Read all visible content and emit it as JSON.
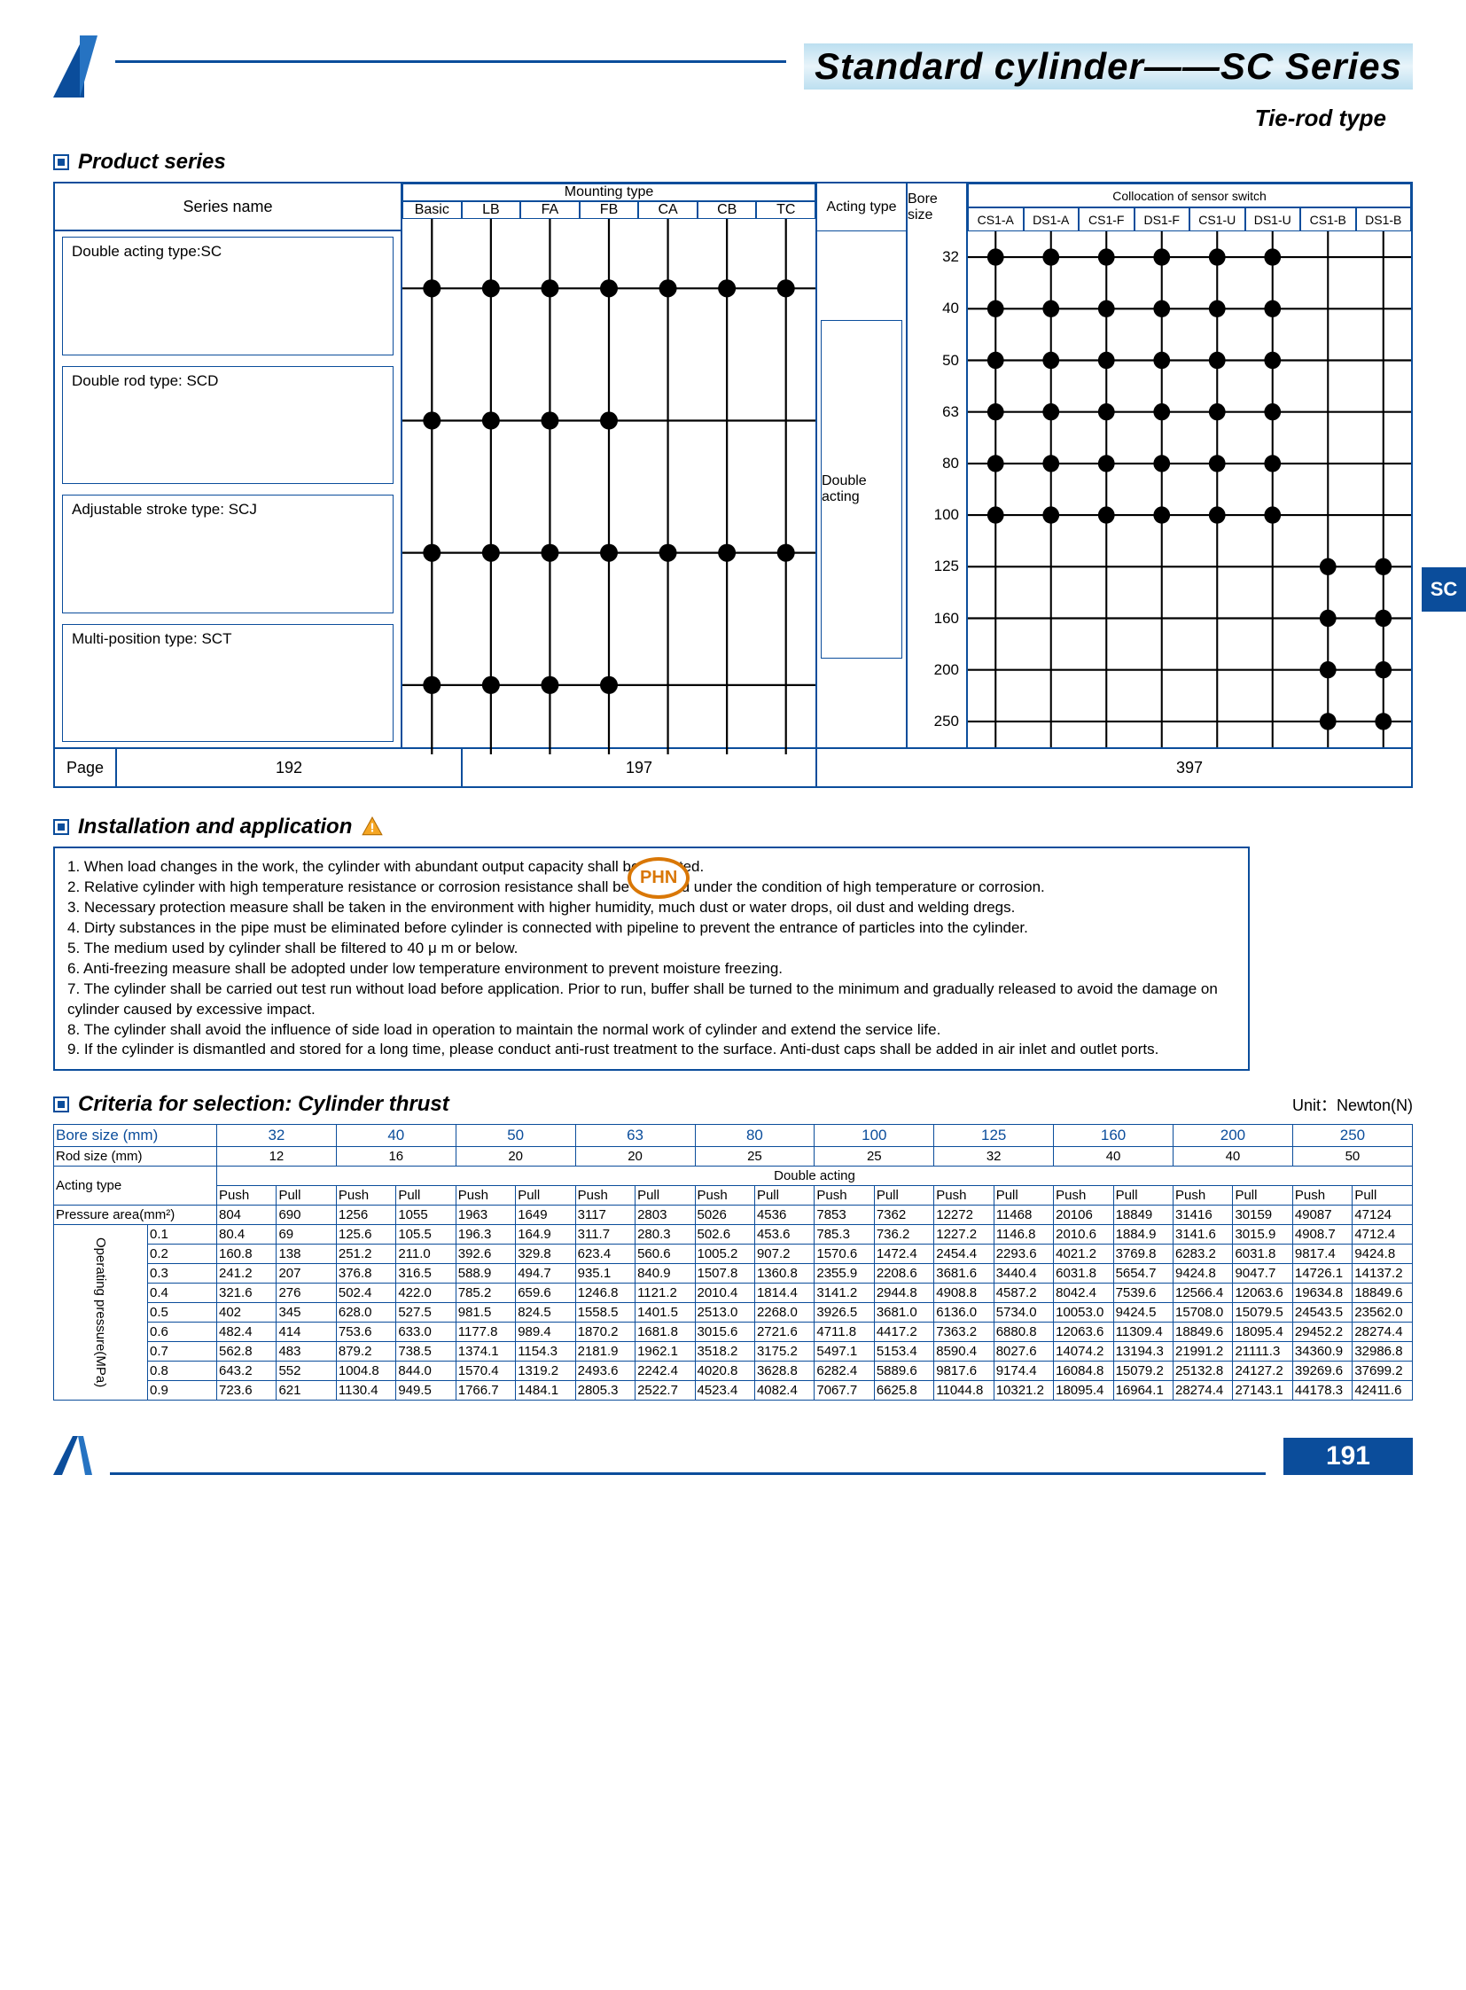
{
  "header": {
    "title": "Standard cylinder——SC Series",
    "subtitle": "Tie-rod type"
  },
  "sc_tab": "SC",
  "sections": {
    "product_series": "Product series",
    "installation": "Installation and application",
    "criteria": "Criteria for selection: Cylinder thrust"
  },
  "product_series": {
    "series_name_header": "Series name",
    "series": [
      "Double acting type:SC",
      "Double rod type: SCD",
      "Adjustable stroke type: SCJ",
      "Multi-position type: SCT"
    ],
    "mounting_header": "Mounting type",
    "mounting_types": [
      "Basic",
      "LB",
      "FA",
      "FB",
      "CA",
      "CB",
      "TC"
    ],
    "acting_header": "Acting type",
    "acting_value": "Double acting",
    "bore_header": "Bore size",
    "bore_sizes": [
      "32",
      "40",
      "50",
      "63",
      "80",
      "100",
      "125",
      "160",
      "200",
      "250"
    ],
    "sensor_header": "Collocation of sensor switch",
    "sensor_types": [
      "CS1-A",
      "DS1-A",
      "CS1-F",
      "DS1-F",
      "CS1-U",
      "DS1-U",
      "CS1-B",
      "DS1-B"
    ],
    "page_label": "Page",
    "pages": [
      "192",
      "197",
      "397"
    ],
    "mounting_chart": {
      "type": "dot-grid",
      "rows": 4,
      "cols": 7,
      "dots": [
        [
          0,
          0
        ],
        [
          0,
          1
        ],
        [
          0,
          2
        ],
        [
          0,
          3
        ],
        [
          0,
          4
        ],
        [
          0,
          5
        ],
        [
          0,
          6
        ],
        [
          1,
          0
        ],
        [
          1,
          1
        ],
        [
          1,
          2
        ],
        [
          1,
          3
        ],
        [
          2,
          0
        ],
        [
          2,
          1
        ],
        [
          2,
          2
        ],
        [
          2,
          3
        ],
        [
          2,
          4
        ],
        [
          2,
          5
        ],
        [
          2,
          6
        ],
        [
          3,
          0
        ],
        [
          3,
          1
        ],
        [
          3,
          2
        ],
        [
          3,
          3
        ]
      ],
      "dot_color": "#000",
      "line_color": "#000",
      "dot_radius": 9
    },
    "sensor_chart": {
      "type": "dot-grid",
      "rows": 10,
      "cols": 8,
      "dots": [
        [
          0,
          0
        ],
        [
          0,
          1
        ],
        [
          0,
          2
        ],
        [
          0,
          3
        ],
        [
          0,
          4
        ],
        [
          0,
          5
        ],
        [
          1,
          0
        ],
        [
          1,
          1
        ],
        [
          1,
          2
        ],
        [
          1,
          3
        ],
        [
          1,
          4
        ],
        [
          1,
          5
        ],
        [
          2,
          0
        ],
        [
          2,
          1
        ],
        [
          2,
          2
        ],
        [
          2,
          3
        ],
        [
          2,
          4
        ],
        [
          2,
          5
        ],
        [
          3,
          0
        ],
        [
          3,
          1
        ],
        [
          3,
          2
        ],
        [
          3,
          3
        ],
        [
          3,
          4
        ],
        [
          3,
          5
        ],
        [
          4,
          0
        ],
        [
          4,
          1
        ],
        [
          4,
          2
        ],
        [
          4,
          3
        ],
        [
          4,
          4
        ],
        [
          4,
          5
        ],
        [
          5,
          0
        ],
        [
          5,
          1
        ],
        [
          5,
          2
        ],
        [
          5,
          3
        ],
        [
          5,
          4
        ],
        [
          5,
          5
        ],
        [
          6,
          6
        ],
        [
          6,
          7
        ],
        [
          7,
          6
        ],
        [
          7,
          7
        ],
        [
          8,
          6
        ],
        [
          8,
          7
        ],
        [
          9,
          6
        ],
        [
          9,
          7
        ]
      ],
      "dot_color": "#000",
      "line_color": "#000",
      "dot_radius": 9
    }
  },
  "installation": {
    "items": [
      "1. When load changes in the work, the cylinder with abundant output capacity shall be selected.",
      "2. Relative cylinder with high temperature resistance or corrosion resistance shall be selected under the condition of high temperature or corrosion.",
      "3. Necessary protection measure shall be taken in the environment with higher humidity, much dust or water drops, oil dust and welding dregs.",
      "4. Dirty substances in the pipe must be eliminated before cylinder is connected with pipeline to prevent the entrance of particles into the cylinder.",
      "5. The medium used by cylinder shall be filtered to 40 μ m or below.",
      "6. Anti-freezing measure shall be adopted under low temperature environment to prevent moisture freezing.",
      "7. The cylinder shall be carried out test run without load before application. Prior to run, buffer shall be turned to the minimum and gradually released to avoid the damage on cylinder caused by excessive impact.",
      "8. The cylinder shall avoid the influence of side load in operation to maintain the normal work of cylinder and extend the service life.",
      "9. If the cylinder is dismantled and stored for a long time, please conduct anti-rust treatment to the surface. Anti-dust caps shall be added in air inlet and outlet ports."
    ]
  },
  "thrust": {
    "unit_label": "Unit：Newton(N)",
    "bore_label": "Bore size  (mm)",
    "rod_label": "Rod size  (mm)",
    "acting_label": "Acting type",
    "double_acting_label": "Double acting",
    "pressure_area_label": "Pressure area(mm²)",
    "op_pressure_label": "Operating pressure(MPa)",
    "push_label": "Push",
    "pull_label": "Pull",
    "bore_sizes": [
      "32",
      "40",
      "50",
      "63",
      "80",
      "100",
      "125",
      "160",
      "200",
      "250"
    ],
    "rod_sizes": [
      "12",
      "16",
      "20",
      "20",
      "25",
      "25",
      "32",
      "40",
      "40",
      "50"
    ],
    "pressure_area": {
      "push": [
        "804",
        "1256",
        "1963",
        "3117",
        "5026",
        "7853",
        "12272",
        "20106",
        "31416",
        "49087"
      ],
      "pull": [
        "690",
        "1055",
        "1649",
        "2803",
        "4536",
        "7362",
        "11468",
        "18849",
        "30159",
        "47124"
      ]
    },
    "pressures": [
      "0.1",
      "0.2",
      "0.3",
      "0.4",
      "0.5",
      "0.6",
      "0.7",
      "0.8",
      "0.9"
    ],
    "values": {
      "0.1": {
        "push": [
          "80.4",
          "125.6",
          "196.3",
          "311.7",
          "502.6",
          "785.3",
          "1227.2",
          "2010.6",
          "3141.6",
          "4908.7"
        ],
        "pull": [
          "69",
          "105.5",
          "164.9",
          "280.3",
          "453.6",
          "736.2",
          "1146.8",
          "1884.9",
          "3015.9",
          "4712.4"
        ]
      },
      "0.2": {
        "push": [
          "160.8",
          "251.2",
          "392.6",
          "623.4",
          "1005.2",
          "1570.6",
          "2454.4",
          "4021.2",
          "6283.2",
          "9817.4"
        ],
        "pull": [
          "138",
          "211.0",
          "329.8",
          "560.6",
          "907.2",
          "1472.4",
          "2293.6",
          "3769.8",
          "6031.8",
          "9424.8"
        ]
      },
      "0.3": {
        "push": [
          "241.2",
          "376.8",
          "588.9",
          "935.1",
          "1507.8",
          "2355.9",
          "3681.6",
          "6031.8",
          "9424.8",
          "14726.1"
        ],
        "pull": [
          "207",
          "316.5",
          "494.7",
          "840.9",
          "1360.8",
          "2208.6",
          "3440.4",
          "5654.7",
          "9047.7",
          "14137.2"
        ]
      },
      "0.4": {
        "push": [
          "321.6",
          "502.4",
          "785.2",
          "1246.8",
          "2010.4",
          "3141.2",
          "4908.8",
          "8042.4",
          "12566.4",
          "19634.8"
        ],
        "pull": [
          "276",
          "422.0",
          "659.6",
          "1121.2",
          "1814.4",
          "2944.8",
          "4587.2",
          "7539.6",
          "12063.6",
          "18849.6"
        ]
      },
      "0.5": {
        "push": [
          "402",
          "628.0",
          "981.5",
          "1558.5",
          "2513.0",
          "3926.5",
          "6136.0",
          "10053.0",
          "15708.0",
          "24543.5"
        ],
        "pull": [
          "345",
          "527.5",
          "824.5",
          "1401.5",
          "2268.0",
          "3681.0",
          "5734.0",
          "9424.5",
          "15079.5",
          "23562.0"
        ]
      },
      "0.6": {
        "push": [
          "482.4",
          "753.6",
          "1177.8",
          "1870.2",
          "3015.6",
          "4711.8",
          "7363.2",
          "12063.6",
          "18849.6",
          "29452.2"
        ],
        "pull": [
          "414",
          "633.0",
          "989.4",
          "1681.8",
          "2721.6",
          "4417.2",
          "6880.8",
          "11309.4",
          "18095.4",
          "28274.4"
        ]
      },
      "0.7": {
        "push": [
          "562.8",
          "879.2",
          "1374.1",
          "2181.9",
          "3518.2",
          "5497.1",
          "8590.4",
          "14074.2",
          "21991.2",
          "34360.9"
        ],
        "pull": [
          "483",
          "738.5",
          "1154.3",
          "1962.1",
          "3175.2",
          "5153.4",
          "8027.6",
          "13194.3",
          "21111.3",
          "32986.8"
        ]
      },
      "0.8": {
        "push": [
          "643.2",
          "1004.8",
          "1570.4",
          "2493.6",
          "4020.8",
          "6282.4",
          "9817.6",
          "16084.8",
          "25132.8",
          "39269.6"
        ],
        "pull": [
          "552",
          "844.0",
          "1319.2",
          "2242.4",
          "3628.8",
          "5889.6",
          "9174.4",
          "15079.2",
          "24127.2",
          "37699.2"
        ]
      },
      "0.9": {
        "push": [
          "723.6",
          "1130.4",
          "1766.7",
          "2805.3",
          "4523.4",
          "7067.7",
          "11044.8",
          "18095.4",
          "28274.4",
          "44178.3"
        ],
        "pull": [
          "621",
          "949.5",
          "1484.1",
          "2522.7",
          "4082.4",
          "6625.8",
          "10321.2",
          "16964.1",
          "27143.1",
          "42411.6"
        ]
      }
    }
  },
  "footer": {
    "page": "191"
  },
  "colors": {
    "brand": "#0b4d9b",
    "header_grad_top": "#bcdff0",
    "header_grad_bot": "#bcdff0",
    "warn": "#e88b00"
  }
}
